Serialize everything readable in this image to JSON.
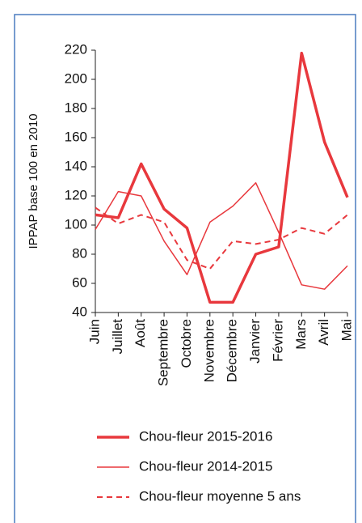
{
  "chart_data": {
    "type": "line",
    "y_label": "IPPAP base 100 en 2010",
    "categories": [
      "Juin",
      "Juillet",
      "Août",
      "Septembre",
      "Octobre",
      "Novembre",
      "Décembre",
      "Janvier",
      "Février",
      "Mars",
      "Avril",
      "Mai"
    ],
    "series": [
      {
        "name": "Chou-fleur 2015-2016",
        "color": "#e8383d",
        "line_width": 3.5,
        "dash": "solid",
        "values": [
          107,
          105,
          142,
          111,
          98,
          47,
          47,
          80,
          85,
          218,
          157,
          119
        ]
      },
      {
        "name": "Chou-fleur 2014-2015",
        "color": "#e8383d",
        "line_width": 1.5,
        "dash": "solid",
        "values": [
          97,
          123,
          120,
          89,
          66,
          102,
          113,
          129,
          95,
          59,
          56,
          72
        ]
      },
      {
        "name": "Chou-fleur moyenne 5 ans",
        "color": "#e8383d",
        "line_width": 2,
        "dash": "dashed",
        "values": [
          112,
          101,
          107,
          102,
          76,
          70,
          89,
          87,
          90,
          98,
          94,
          107
        ]
      }
    ],
    "ylim": [
      40,
      220
    ],
    "yticks": [
      40,
      60,
      80,
      100,
      120,
      140,
      160,
      180,
      200,
      220
    ]
  }
}
